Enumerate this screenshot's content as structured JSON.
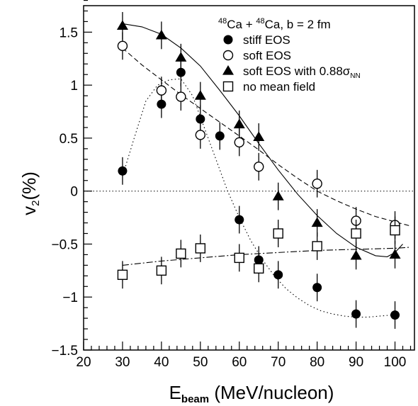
{
  "chart_data": {
    "type": "scatter",
    "title": "",
    "annotation": {
      "pre1": "48",
      "t1": "Ca + ",
      "pre2": "48",
      "t2": "Ca, b = 2 fm"
    },
    "xlabel": {
      "main": "E",
      "sub": "beam",
      "rest": " (MeV/nucleon)"
    },
    "ylabel": {
      "main": "v",
      "sub": "2",
      "rest": "(%)"
    },
    "xlim": [
      20,
      105
    ],
    "ylim": [
      -1.5,
      1.75
    ],
    "xticks": [
      20,
      30,
      40,
      50,
      60,
      70,
      80,
      90,
      100
    ],
    "yticks": [
      -1.5,
      -1,
      -0.5,
      0,
      0.5,
      1,
      1.5
    ],
    "xtick_labels": [
      "20",
      "30",
      "40",
      "50",
      "60",
      "70",
      "80",
      "90",
      "100"
    ],
    "ytick_labels": [
      "−1.5",
      "−1",
      "−0.5",
      "0",
      "0.5",
      "1",
      "1.5"
    ],
    "grid": false,
    "zero_line": true,
    "legend_position": "top-right",
    "series": [
      {
        "name": "stiff EOS",
        "marker": "filled-circle",
        "points": [
          {
            "x": 30,
            "y": 0.19,
            "err": 0.13
          },
          {
            "x": 40,
            "y": 0.82,
            "err": 0.13
          },
          {
            "x": 45,
            "y": 1.12,
            "err": 0.13
          },
          {
            "x": 50,
            "y": 0.68,
            "err": 0.13
          },
          {
            "x": 55,
            "y": 0.52,
            "err": 0.13
          },
          {
            "x": 60,
            "y": -0.27,
            "err": 0.13
          },
          {
            "x": 65,
            "y": -0.65,
            "err": 0.13
          },
          {
            "x": 70,
            "y": -0.79,
            "err": 0.13
          },
          {
            "x": 80,
            "y": -0.91,
            "err": 0.13
          },
          {
            "x": 90,
            "y": -1.16,
            "err": 0.13
          },
          {
            "x": 100,
            "y": -1.17,
            "err": 0.13
          }
        ],
        "curve_style": "dotted",
        "curve": [
          [
            30,
            0.14
          ],
          [
            33,
            0.5
          ],
          [
            36,
            0.85
          ],
          [
            39,
            1.0
          ],
          [
            42,
            1.05
          ],
          [
            45,
            1.06
          ],
          [
            48,
            0.9
          ],
          [
            51,
            0.6
          ],
          [
            54,
            0.3
          ],
          [
            57,
            0.0
          ],
          [
            60,
            -0.25
          ],
          [
            63,
            -0.47
          ],
          [
            66,
            -0.65
          ],
          [
            69,
            -0.8
          ],
          [
            72,
            -0.92
          ],
          [
            75,
            -1.01
          ],
          [
            78,
            -1.08
          ],
          [
            81,
            -1.13
          ],
          [
            84,
            -1.16
          ],
          [
            87,
            -1.18
          ],
          [
            90,
            -1.19
          ],
          [
            93,
            -1.19
          ],
          [
            96,
            -1.18
          ],
          [
            99,
            -1.17
          ],
          [
            101,
            -1.16
          ]
        ]
      },
      {
        "name": "soft EOS",
        "marker": "open-circle",
        "points": [
          {
            "x": 30,
            "y": 1.37,
            "err": 0.13
          },
          {
            "x": 40,
            "y": 0.95,
            "err": 0.13
          },
          {
            "x": 45,
            "y": 0.89,
            "err": 0.13
          },
          {
            "x": 50,
            "y": 0.53,
            "err": 0.13
          },
          {
            "x": 60,
            "y": 0.46,
            "err": 0.13
          },
          {
            "x": 65,
            "y": 0.23,
            "err": 0.13
          },
          {
            "x": 80,
            "y": 0.07,
            "err": 0.13
          },
          {
            "x": 90,
            "y": -0.28,
            "err": 0.13
          },
          {
            "x": 100,
            "y": -0.32,
            "err": 0.13
          }
        ],
        "curve_style": "dashed",
        "curve": [
          [
            30,
            1.35
          ],
          [
            35,
            1.19
          ],
          [
            40,
            1.05
          ],
          [
            45,
            0.91
          ],
          [
            50,
            0.78
          ],
          [
            55,
            0.65
          ],
          [
            60,
            0.52
          ],
          [
            65,
            0.39
          ],
          [
            70,
            0.25
          ],
          [
            75,
            0.12
          ],
          [
            80,
            0.0
          ],
          [
            85,
            -0.09
          ],
          [
            90,
            -0.17
          ],
          [
            95,
            -0.24
          ],
          [
            100,
            -0.29
          ],
          [
            104,
            -0.33
          ]
        ]
      },
      {
        "name": "soft EOS with 0.88σ",
        "name_sub": "NN",
        "marker": "filled-triangle",
        "points": [
          {
            "x": 30,
            "y": 1.56,
            "err": 0.13
          },
          {
            "x": 40,
            "y": 1.47,
            "err": 0.13
          },
          {
            "x": 45,
            "y": 1.26,
            "err": 0.13
          },
          {
            "x": 50,
            "y": 0.9,
            "err": 0.13
          },
          {
            "x": 60,
            "y": 0.63,
            "err": 0.13
          },
          {
            "x": 65,
            "y": 0.51,
            "err": 0.13
          },
          {
            "x": 70,
            "y": -0.05,
            "err": 0.13
          },
          {
            "x": 80,
            "y": -0.3,
            "err": 0.13
          },
          {
            "x": 90,
            "y": -0.61,
            "err": 0.13
          },
          {
            "x": 100,
            "y": -0.6,
            "err": 0.13
          }
        ],
        "curve_style": "solid",
        "curve": [
          [
            30,
            1.58
          ],
          [
            35,
            1.55
          ],
          [
            40,
            1.48
          ],
          [
            45,
            1.35
          ],
          [
            50,
            1.18
          ],
          [
            55,
            0.95
          ],
          [
            60,
            0.71
          ],
          [
            65,
            0.45
          ],
          [
            70,
            0.2
          ],
          [
            75,
            -0.03
          ],
          [
            80,
            -0.23
          ],
          [
            85,
            -0.4
          ],
          [
            90,
            -0.53
          ],
          [
            95,
            -0.61
          ],
          [
            98,
            -0.62
          ],
          [
            100,
            -0.58
          ],
          [
            102,
            -0.5
          ]
        ]
      },
      {
        "name": "no mean field",
        "marker": "open-square",
        "points": [
          {
            "x": 30,
            "y": -0.79,
            "err": 0.13
          },
          {
            "x": 40,
            "y": -0.75,
            "err": 0.13
          },
          {
            "x": 45,
            "y": -0.59,
            "err": 0.13
          },
          {
            "x": 50,
            "y": -0.54,
            "err": 0.13
          },
          {
            "x": 60,
            "y": -0.63,
            "err": 0.13
          },
          {
            "x": 65,
            "y": -0.73,
            "err": 0.13
          },
          {
            "x": 70,
            "y": -0.4,
            "err": 0.13
          },
          {
            "x": 80,
            "y": -0.52,
            "err": 0.13
          },
          {
            "x": 90,
            "y": -0.4,
            "err": 0.13
          },
          {
            "x": 100,
            "y": -0.37,
            "err": 0.13
          }
        ],
        "curve_style": "dash-dot",
        "curve": [
          [
            30,
            -0.7
          ],
          [
            40,
            -0.66
          ],
          [
            50,
            -0.63
          ],
          [
            60,
            -0.6
          ],
          [
            70,
            -0.58
          ],
          [
            80,
            -0.56
          ],
          [
            90,
            -0.55
          ],
          [
            100,
            -0.54
          ],
          [
            104,
            -0.53
          ]
        ]
      }
    ]
  }
}
